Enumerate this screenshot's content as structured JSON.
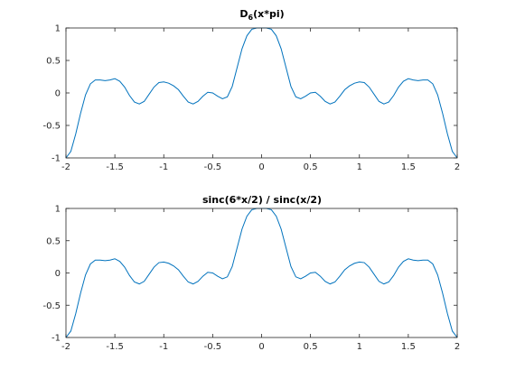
{
  "chart_data": [
    {
      "type": "line",
      "title_main": "D",
      "title_sub": "6",
      "title_rest": "(x*pi)",
      "xlim": [
        -2,
        2
      ],
      "ylim": [
        -1,
        1
      ],
      "x_ticks": [
        -2,
        -1.5,
        -1,
        -0.5,
        0,
        0.5,
        1,
        1.5,
        2
      ],
      "x_tick_labels": [
        "-2",
        "-1.5",
        "-1",
        "-0.5",
        "0",
        "0.5",
        "1",
        "1.5",
        "2"
      ],
      "y_ticks": [
        -1,
        -0.5,
        0,
        0.5,
        1
      ],
      "y_tick_labels": [
        "-1",
        "-0.5",
        "0",
        "0.5",
        "1"
      ],
      "grid": false,
      "series": [
        {
          "color": "#0072bd",
          "x": [
            -2,
            -1.95,
            -1.9,
            -1.85,
            -1.8,
            -1.75,
            -1.7,
            -1.65,
            -1.6,
            -1.55,
            -1.5,
            -1.45,
            -1.4,
            -1.35,
            -1.3,
            -1.25,
            -1.2,
            -1.15,
            -1.1,
            -1.05,
            -1,
            -0.95,
            -0.9,
            -0.85,
            -0.8,
            -0.75,
            -0.7,
            -0.65,
            -0.6,
            -0.55,
            -0.5,
            -0.45,
            -0.4,
            -0.35,
            -0.3,
            -0.25,
            -0.2,
            -0.15,
            -0.1,
            -0.05,
            0,
            0.05,
            0.1,
            0.15,
            0.2,
            0.25,
            0.3,
            0.35,
            0.4,
            0.45,
            0.5,
            0.55,
            0.6,
            0.65,
            0.7,
            0.75,
            0.8,
            0.85,
            0.9,
            0.95,
            1,
            1.05,
            1.1,
            1.15,
            1.2,
            1.25,
            1.3,
            1.35,
            1.4,
            1.45,
            1.5,
            1.55,
            1.6,
            1.65,
            1.7,
            1.75,
            1.8,
            1.85,
            1.9,
            1.95,
            2
          ],
          "y": [
            -1,
            -0.9,
            -0.63,
            -0.31,
            -0.03,
            0.14,
            0.2,
            0.2,
            0.19,
            0.2,
            0.22,
            0.18,
            0.09,
            -0.04,
            -0.14,
            -0.17,
            -0.13,
            -0.02,
            0.09,
            0.16,
            0.17,
            0.15,
            0.11,
            0.05,
            -0.05,
            -0.14,
            -0.17,
            -0.13,
            -0.05,
            0.01,
            0,
            -0.05,
            -0.09,
            -0.06,
            0.1,
            0.39,
            0.68,
            0.88,
            0.98,
            1,
            1,
            1,
            0.98,
            0.88,
            0.68,
            0.39,
            0.1,
            -0.06,
            -0.09,
            -0.05,
            0,
            0.01,
            -0.05,
            -0.13,
            -0.17,
            -0.14,
            -0.05,
            0.05,
            0.11,
            0.15,
            0.17,
            0.16,
            0.09,
            -0.02,
            -0.13,
            -0.17,
            -0.14,
            -0.04,
            0.09,
            0.18,
            0.22,
            0.2,
            0.19,
            0.2,
            0.2,
            0.14,
            -0.03,
            -0.31,
            -0.63,
            -0.9,
            -1
          ]
        }
      ]
    },
    {
      "type": "line",
      "title_main": "sinc(6*x/2) / sinc(x/2)",
      "title_sub": "",
      "title_rest": "",
      "xlim": [
        -2,
        2
      ],
      "ylim": [
        -1,
        1
      ],
      "x_ticks": [
        -2,
        -1.5,
        -1,
        -0.5,
        0,
        0.5,
        1,
        1.5,
        2
      ],
      "x_tick_labels": [
        "-2",
        "-1.5",
        "-1",
        "-0.5",
        "0",
        "0.5",
        "1",
        "1.5",
        "2"
      ],
      "y_ticks": [
        -1,
        -0.5,
        0,
        0.5,
        1
      ],
      "y_tick_labels": [
        "-1",
        "-0.5",
        "0",
        "0.5",
        "1"
      ],
      "grid": false,
      "series": [
        {
          "color": "#0072bd",
          "x": [
            -2,
            -1.95,
            -1.9,
            -1.85,
            -1.8,
            -1.75,
            -1.7,
            -1.65,
            -1.6,
            -1.55,
            -1.5,
            -1.45,
            -1.4,
            -1.35,
            -1.3,
            -1.25,
            -1.2,
            -1.15,
            -1.1,
            -1.05,
            -1,
            -0.95,
            -0.9,
            -0.85,
            -0.8,
            -0.75,
            -0.7,
            -0.65,
            -0.6,
            -0.55,
            -0.5,
            -0.45,
            -0.4,
            -0.35,
            -0.3,
            -0.25,
            -0.2,
            -0.15,
            -0.1,
            -0.05,
            0,
            0.05,
            0.1,
            0.15,
            0.2,
            0.25,
            0.3,
            0.35,
            0.4,
            0.45,
            0.5,
            0.55,
            0.6,
            0.65,
            0.7,
            0.75,
            0.8,
            0.85,
            0.9,
            0.95,
            1,
            1.05,
            1.1,
            1.15,
            1.2,
            1.25,
            1.3,
            1.35,
            1.4,
            1.45,
            1.5,
            1.55,
            1.6,
            1.65,
            1.7,
            1.75,
            1.8,
            1.85,
            1.9,
            1.95,
            2
          ],
          "y": [
            -1,
            -0.9,
            -0.63,
            -0.31,
            -0.03,
            0.14,
            0.2,
            0.2,
            0.19,
            0.2,
            0.22,
            0.18,
            0.09,
            -0.04,
            -0.14,
            -0.17,
            -0.13,
            -0.02,
            0.09,
            0.16,
            0.17,
            0.15,
            0.11,
            0.05,
            -0.05,
            -0.14,
            -0.17,
            -0.13,
            -0.05,
            0.01,
            0,
            -0.05,
            -0.09,
            -0.06,
            0.1,
            0.39,
            0.68,
            0.88,
            0.98,
            1,
            1,
            1,
            0.98,
            0.88,
            0.68,
            0.39,
            0.1,
            -0.06,
            -0.09,
            -0.05,
            0,
            0.01,
            -0.05,
            -0.13,
            -0.17,
            -0.14,
            -0.05,
            0.05,
            0.11,
            0.15,
            0.17,
            0.16,
            0.09,
            -0.02,
            -0.13,
            -0.17,
            -0.14,
            -0.04,
            0.09,
            0.18,
            0.22,
            0.2,
            0.19,
            0.2,
            0.2,
            0.14,
            -0.03,
            -0.31,
            -0.63,
            -0.9,
            -1
          ]
        }
      ]
    }
  ]
}
